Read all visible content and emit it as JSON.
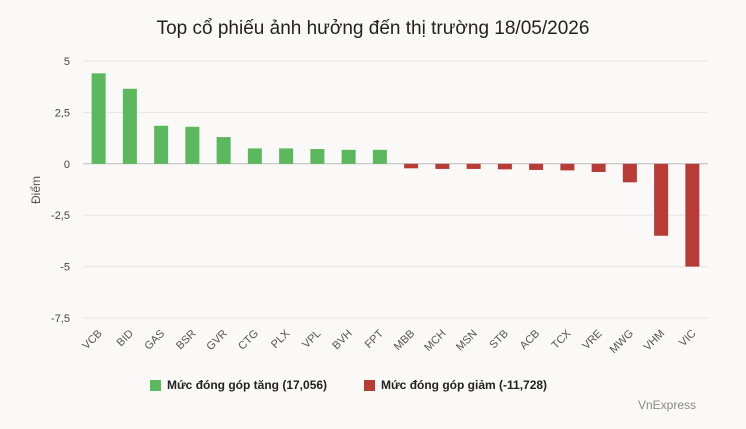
{
  "chart_data": {
    "type": "bar",
    "title": "Top cổ phiếu ảnh hưởng đến thị trường 18/05/2026",
    "ylabel": "Điểm",
    "ylim": [
      -7.5,
      5
    ],
    "yticks": [
      "5",
      "2,5",
      "0",
      "-2,5",
      "-5",
      "-7,5"
    ],
    "ytick_values": [
      5,
      2.5,
      0,
      -2.5,
      -5,
      -7.5
    ],
    "categories": [
      "VCB",
      "BID",
      "GAS",
      "BSR",
      "GVR",
      "CTG",
      "PLX",
      "VPL",
      "BVH",
      "FPT",
      "MBB",
      "MCH",
      "MSN",
      "STB",
      "ACB",
      "TCX",
      "VRE",
      "MWG",
      "VHM",
      "VIC"
    ],
    "values": [
      4.4,
      3.65,
      1.85,
      1.8,
      1.3,
      0.75,
      0.75,
      0.72,
      0.68,
      0.68,
      -0.22,
      -0.25,
      -0.25,
      -0.27,
      -0.3,
      -0.32,
      -0.4,
      -0.9,
      -3.5,
      -5.0
    ],
    "colors": {
      "positive": "#5cb85c",
      "negative": "#b83b36"
    },
    "grid": true,
    "legend_position": "bottom"
  },
  "legend": {
    "positive_label": "Mức đóng góp tăng (17,056)",
    "negative_label": "Mức đóng góp giảm (-11,728)"
  },
  "source": "VnExpress"
}
